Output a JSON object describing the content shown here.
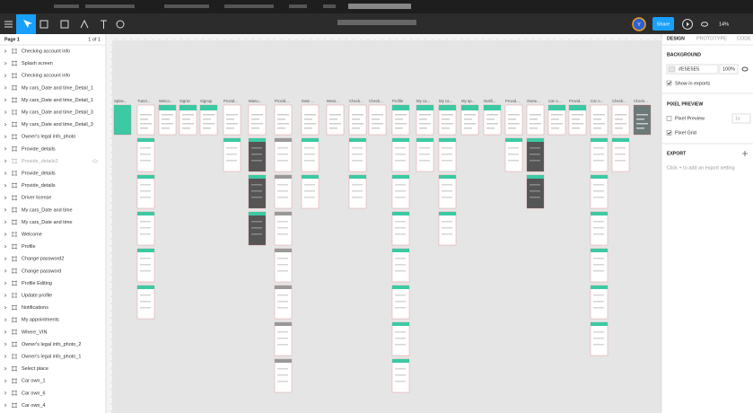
{
  "toolbar": {
    "avatar": "Y",
    "share": "Share",
    "zoom": "14%"
  },
  "pages": {
    "title": "Page 1",
    "count": "1 of 1"
  },
  "layers": [
    "Checking account info",
    "Splash screen",
    "Checking account info",
    "My cars_Date and time_Detail_1",
    "My cars_Date and time_Detail_1",
    "My cars_Date and time_Detail_3",
    "My cars_Date and time_Detail_3",
    "Owner's legal info_photo",
    "Provide_details",
    "Provide_details2",
    "Provide_details",
    "Provide_details",
    "Driver license",
    "My cars_Date and time",
    "My cars_Date and time",
    "Welcome",
    "Profile",
    "Change password2",
    "Change password",
    "Profile Editing",
    "Update profile",
    "Notifications",
    "My appointments",
    "Where_VIN",
    "Owner's legal info_photo_2",
    "Owner's legal info_photo_1",
    "Select place",
    "Car own_1",
    "Car own_6",
    "Car own_4"
  ],
  "canvas": {
    "frame_labels": [
      "Splas...",
      "Tutori...",
      "Welco...",
      "Signin",
      "Signup",
      "Provid...",
      "Manu...",
      "Provid...",
      "Date ...",
      "Mess...",
      "Check...",
      "Check...",
      "Profile",
      "My ca...",
      "My ca...",
      "My ap...",
      "Notifi...",
      "Provid...",
      "Owne...",
      "Car o...",
      "Provid...",
      "Car o...",
      "Check...",
      "Check..."
    ]
  },
  "design_panel": {
    "tabs": [
      "DESIGN",
      "PROTOTYPE",
      "CODE"
    ],
    "background": {
      "heading": "BACKGROUND",
      "color": "#E5E5E5",
      "opacity": "100%",
      "show_in_exports": "Show in exports"
    },
    "pixel_preview": {
      "heading": "PIXEL PREVIEW",
      "pixel_preview": "Pixel Preview",
      "scale": "1x",
      "pixel_grid": "Pixel Grid"
    },
    "export": {
      "heading": "EXPORT",
      "hint": "Click + to add an export setting"
    }
  }
}
